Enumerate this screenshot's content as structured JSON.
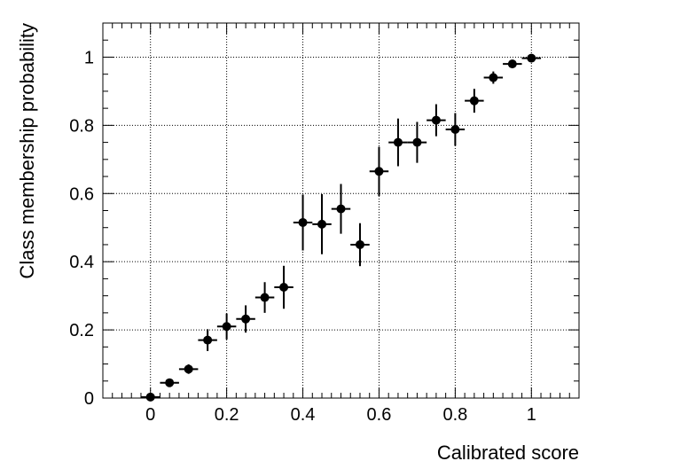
{
  "chart_data": {
    "type": "scatter",
    "title": "",
    "xlabel": "Calibrated score",
    "ylabel": "Class membership probability",
    "xlim": [
      -0.125,
      1.125
    ],
    "ylim": [
      0,
      1.1
    ],
    "x_ticks": [
      0,
      0.2,
      0.4,
      0.6,
      0.8,
      1
    ],
    "y_ticks": [
      0,
      0.2,
      0.4,
      0.6,
      0.8,
      1
    ],
    "x_tick_labels": [
      "0",
      "0.2",
      "0.4",
      "0.6",
      "0.8",
      "1"
    ],
    "y_tick_labels": [
      "0",
      "0.2",
      "0.4",
      "0.6",
      "0.8",
      "1"
    ],
    "grid": true,
    "x_bin_half_width": 0.025,
    "points": [
      {
        "x": 0.0,
        "y": 0.003,
        "err": 0.004
      },
      {
        "x": 0.05,
        "y": 0.045,
        "err": 0.008
      },
      {
        "x": 0.1,
        "y": 0.085,
        "err": 0.014
      },
      {
        "x": 0.15,
        "y": 0.17,
        "err": 0.032
      },
      {
        "x": 0.2,
        "y": 0.21,
        "err": 0.038
      },
      {
        "x": 0.25,
        "y": 0.232,
        "err": 0.04
      },
      {
        "x": 0.3,
        "y": 0.295,
        "err": 0.045
      },
      {
        "x": 0.35,
        "y": 0.325,
        "err": 0.063
      },
      {
        "x": 0.4,
        "y": 0.515,
        "err": 0.082
      },
      {
        "x": 0.45,
        "y": 0.51,
        "err": 0.088
      },
      {
        "x": 0.5,
        "y": 0.555,
        "err": 0.073
      },
      {
        "x": 0.55,
        "y": 0.45,
        "err": 0.063
      },
      {
        "x": 0.6,
        "y": 0.665,
        "err": 0.072
      },
      {
        "x": 0.65,
        "y": 0.75,
        "err": 0.07
      },
      {
        "x": 0.7,
        "y": 0.75,
        "err": 0.06
      },
      {
        "x": 0.75,
        "y": 0.815,
        "err": 0.047
      },
      {
        "x": 0.8,
        "y": 0.788,
        "err": 0.048
      },
      {
        "x": 0.85,
        "y": 0.872,
        "err": 0.035
      },
      {
        "x": 0.9,
        "y": 0.94,
        "err": 0.018
      },
      {
        "x": 0.95,
        "y": 0.98,
        "err": 0.008
      },
      {
        "x": 1.0,
        "y": 0.997,
        "err": 0.004
      }
    ]
  }
}
